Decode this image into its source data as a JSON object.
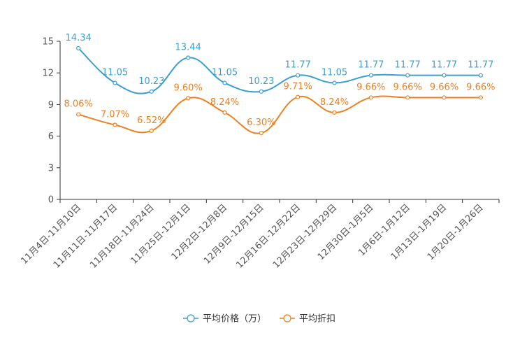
{
  "chart_data": {
    "type": "line",
    "categories": [
      "11月4日-11月10日",
      "11月11日-11月17日",
      "11月18日-11月24日",
      "11月25日-12月1日",
      "12月2日-12月8日",
      "12月9日-12月15日",
      "12月16日-12月22日",
      "12月23日-12月29日",
      "12月30日-1月5日",
      "1月6日-1月12日",
      "1月13日-1月19日",
      "1月20日-1月26日"
    ],
    "series": [
      {
        "name": "平均价格（万）",
        "color": "#3d9fcf",
        "values": [
          14.34,
          11.05,
          10.23,
          13.44,
          11.05,
          10.23,
          11.77,
          11.05,
          11.77,
          11.77,
          11.77,
          11.77
        ],
        "labels": [
          "14.34",
          "11.05",
          "10.23",
          "13.44",
          "11.05",
          "10.23",
          "11.77",
          "11.05",
          "11.77",
          "11.77",
          "11.77",
          "11.77"
        ]
      },
      {
        "name": "平均折扣",
        "color": "#f07f1f",
        "values": [
          8.06,
          7.07,
          6.52,
          9.6,
          8.24,
          6.3,
          9.71,
          8.24,
          9.66,
          9.66,
          9.66,
          9.66
        ],
        "labels": [
          "8.06%",
          "7.07%",
          "6.52%",
          "9.60%",
          "8.24%",
          "6.30%",
          "9.71%",
          "8.24%",
          "9.66%",
          "9.66%",
          "9.66%",
          "9.66%"
        ]
      }
    ],
    "yticks": [
      "0",
      "3",
      "6",
      "9",
      "12",
      "15"
    ],
    "ylim": [
      0,
      15
    ],
    "grid": false,
    "legend_position": "bottom-center",
    "title": "",
    "xlabel": "",
    "ylabel": ""
  }
}
